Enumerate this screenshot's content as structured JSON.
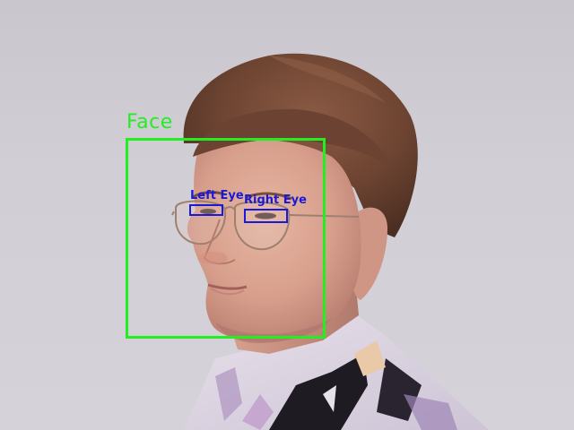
{
  "detections": {
    "face": {
      "label": "Face",
      "color": "#22ee22"
    },
    "left_eye": {
      "label": "Left Eye",
      "color": "#1a1ad6"
    },
    "right_eye": {
      "label": "Right Eye",
      "color": "#1a1ad6"
    }
  },
  "photo": {
    "subject_icons": [
      "person-head",
      "eyeglasses",
      "patterned-shirt"
    ]
  }
}
